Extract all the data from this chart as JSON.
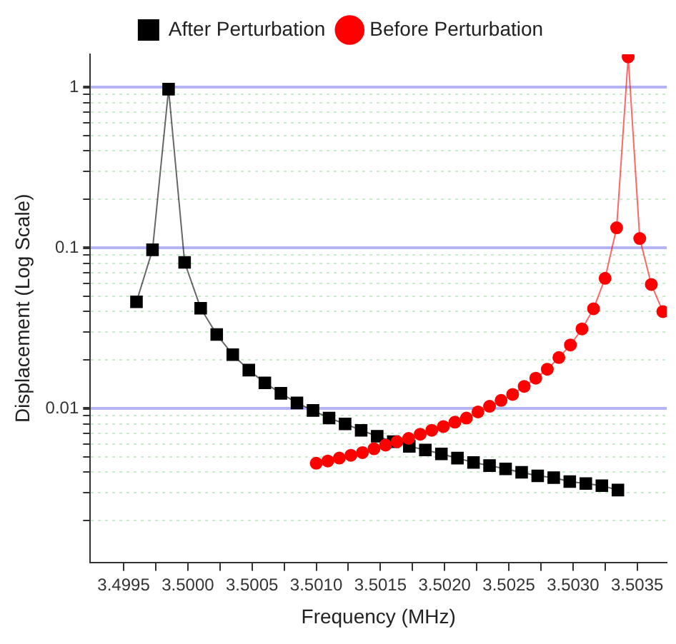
{
  "chart_data": {
    "type": "line",
    "xlabel": "Frequency (MHz)",
    "ylabel": "Displacement (Log Scale)",
    "log": "y",
    "grid": "y",
    "legend": "top",
    "xlim": [
      3.49924,
      3.50373
    ],
    "ylim": [
      0.0011,
      1.6
    ],
    "xticks": [
      {
        "value": 3.4995,
        "label": "3.4995"
      },
      {
        "value": 3.49975,
        "label": null
      },
      {
        "value": 3.5,
        "label": "3.5000"
      },
      {
        "value": 3.50025,
        "label": null
      },
      {
        "value": 3.5005,
        "label": "3.5005"
      },
      {
        "value": 3.50075,
        "label": null
      },
      {
        "value": 3.501,
        "label": "3.5010"
      },
      {
        "value": 3.50125,
        "label": null
      },
      {
        "value": 3.5015,
        "label": "3.5015"
      },
      {
        "value": 3.50175,
        "label": null
      },
      {
        "value": 3.502,
        "label": "3.5020"
      },
      {
        "value": 3.50225,
        "label": null
      },
      {
        "value": 3.5025,
        "label": "3.5025"
      },
      {
        "value": 3.50275,
        "label": null
      },
      {
        "value": 3.503,
        "label": "3.5030"
      },
      {
        "value": 3.50325,
        "label": null
      },
      {
        "value": 3.5035,
        "label": "3.5035"
      }
    ],
    "yticks": [
      {
        "value": 0.002,
        "label": null
      },
      {
        "value": 0.003,
        "label": null
      },
      {
        "value": 0.004,
        "label": null
      },
      {
        "value": 0.005,
        "label": null
      },
      {
        "value": 0.006,
        "label": null
      },
      {
        "value": 0.007,
        "label": null
      },
      {
        "value": 0.008,
        "label": null
      },
      {
        "value": 0.009,
        "label": null
      },
      0.01,
      {
        "value": 0.02,
        "label": null
      },
      {
        "value": 0.03,
        "label": null
      },
      {
        "value": 0.04,
        "label": null
      },
      {
        "value": 0.05,
        "label": null
      },
      {
        "value": 0.06,
        "label": null
      },
      {
        "value": 0.07,
        "label": null
      },
      {
        "value": 0.08,
        "label": null
      },
      {
        "value": 0.09,
        "label": null
      },
      0.1,
      {
        "value": 0.2,
        "label": null
      },
      {
        "value": 0.3,
        "label": null
      },
      {
        "value": 0.4,
        "label": null
      },
      {
        "value": 0.5,
        "label": null
      },
      {
        "value": 0.6,
        "label": null
      },
      {
        "value": 0.7,
        "label": null
      },
      {
        "value": 0.8,
        "label": null
      },
      {
        "value": 0.9,
        "label": null
      },
      1
    ],
    "series": [
      {
        "name": "After Perturbation",
        "color": "#000000",
        "marker": "square",
        "x": [
          3.4996,
          3.499725,
          3.49985,
          3.499975,
          3.5001,
          3.500225,
          3.50035,
          3.500475,
          3.5006,
          3.500725,
          3.50085,
          3.500975,
          3.5011,
          3.501225,
          3.50135,
          3.501475,
          3.5016,
          3.501725,
          3.50185,
          3.501975,
          3.5021,
          3.502225,
          3.50235,
          3.502475,
          3.5026,
          3.502725,
          3.50285,
          3.502975,
          3.5031,
          3.503225,
          3.50335
        ],
        "values": [
          0.046,
          0.097,
          0.97,
          0.081,
          0.042,
          0.0288,
          0.0216,
          0.0173,
          0.0144,
          0.0124,
          0.0108,
          0.0097,
          0.0087,
          0.008,
          0.0073,
          0.0067,
          0.0062,
          0.0058,
          0.0055,
          0.0052,
          0.0049,
          0.0046,
          0.0044,
          0.0042,
          0.004,
          0.0038,
          0.0037,
          0.0035,
          0.0034,
          0.0033,
          0.0031
        ]
      },
      {
        "name": "Before Perturbation",
        "color": "#ff0000",
        "marker": "circle",
        "x": [
          3.501,
          3.50109,
          3.50118,
          3.50127,
          3.50136,
          3.50145,
          3.50154,
          3.50163,
          3.50172,
          3.50181,
          3.5019,
          3.50199,
          3.50208,
          3.50217,
          3.50226,
          3.50235,
          3.50244,
          3.50253,
          3.50262,
          3.50271,
          3.5028,
          3.50289,
          3.50298,
          3.50307,
          3.50316,
          3.50325,
          3.50334,
          3.50343,
          3.50352,
          3.50361,
          3.5037
        ],
        "values": [
          0.00455,
          0.0047,
          0.0049,
          0.0051,
          0.0053,
          0.0056,
          0.0059,
          0.0062,
          0.0065,
          0.0069,
          0.0073,
          0.0077,
          0.0082,
          0.0087,
          0.0095,
          0.0103,
          0.0112,
          0.0122,
          0.0137,
          0.0154,
          0.0175,
          0.0207,
          0.0248,
          0.0312,
          0.0417,
          0.0645,
          0.133,
          1.54,
          0.114,
          0.059,
          0.04
        ]
      }
    ]
  }
}
